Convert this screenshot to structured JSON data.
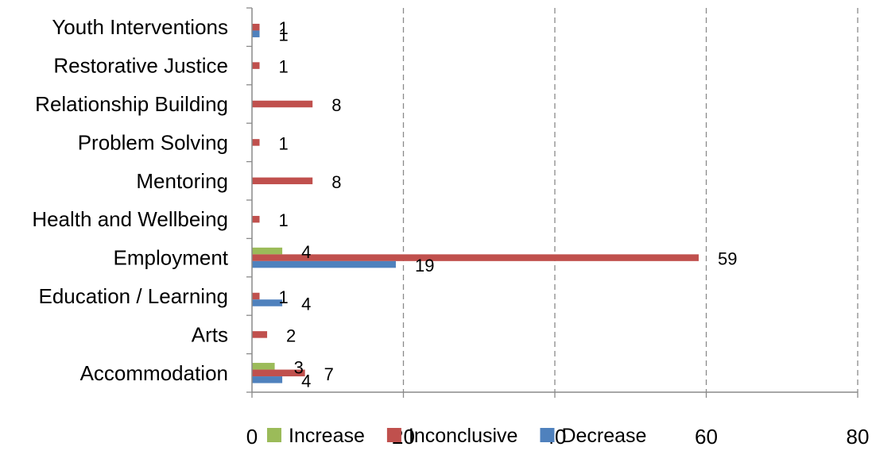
{
  "chart_data": {
    "type": "bar",
    "orientation": "horizontal",
    "categories": [
      "Accommodation",
      "Arts",
      "Education / Learning",
      "Employment",
      "Health and Wellbeing",
      "Mentoring",
      "Problem Solving",
      "Relationship Building",
      "Restorative Justice",
      "Youth Interventions"
    ],
    "series": [
      {
        "name": "Increase",
        "color": "#9BBB59",
        "values": [
          3,
          null,
          null,
          4,
          null,
          null,
          null,
          null,
          null,
          null
        ]
      },
      {
        "name": "Inconclusive",
        "color": "#C0504D",
        "values": [
          7,
          2,
          1,
          59,
          1,
          8,
          1,
          8,
          1,
          1
        ]
      },
      {
        "name": "Decrease",
        "color": "#4F81BD",
        "values": [
          4,
          null,
          4,
          19,
          null,
          null,
          null,
          null,
          null,
          1
        ]
      }
    ],
    "xlim": [
      0,
      80
    ],
    "x_ticks": [
      "0",
      "20",
      "40",
      "60",
      "80"
    ],
    "grid": "vertical dashed",
    "legend_position": "bottom",
    "title": "",
    "xlabel": "",
    "ylabel": ""
  }
}
